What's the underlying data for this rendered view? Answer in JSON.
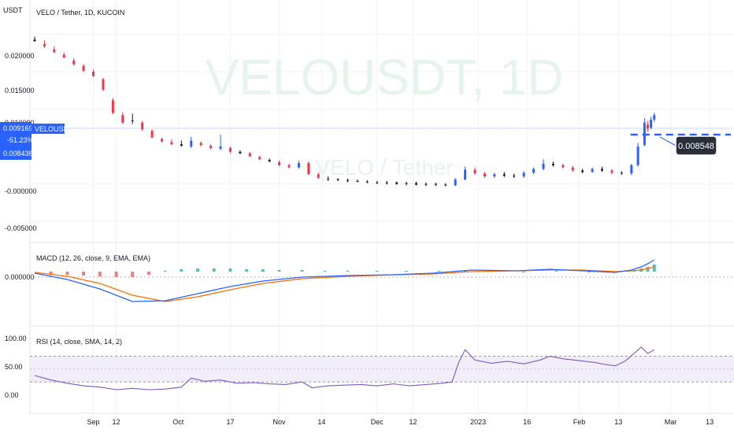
{
  "header": {
    "unit": "USDT",
    "title": "VELO / Tether, 1D, KUCOIN",
    "watermark_symbol": "VELOUSDT, 1D",
    "watermark_name": "VELO / Tether"
  },
  "price_axis": {
    "ticks": [
      "0.020000",
      "0.015000",
      "0.010000",
      "-0.000000",
      "-0.005000"
    ],
    "current_price_box": [
      "0.009169",
      "-51.23%",
      "0.008436"
    ],
    "symbol_badge": "VELOUSDT",
    "callout": "0.008548"
  },
  "macd": {
    "label": "MACD (12, 26, close, 9, EMA, EMA)",
    "tick": "0.000000"
  },
  "rsi": {
    "label": "RSI (14, close, SMA, 14, 2)",
    "ticks": [
      "100.00",
      "50.00",
      "0.00"
    ]
  },
  "time_axis": [
    "Sep",
    "12",
    "Oct",
    "17",
    "Nov",
    "14",
    "Dec",
    "12",
    "2023",
    "16",
    "Feb",
    "13",
    "Mar",
    "13"
  ],
  "colors": {
    "up": "#2962ff",
    "down": "#f23645",
    "doji": "#131722",
    "macd_line": "#2962ff",
    "signal_line": "#ff6d00",
    "hist_pos": "#26a69a",
    "hist_neg": "#ef5350",
    "rsi_line": "#7e57c2",
    "rsi_band": "#ede7f6"
  },
  "chart_data": {
    "type": "candlestick",
    "x_range": [
      "2022-08-18",
      "2023-03-19"
    ],
    "ylim": [
      -0.0072,
      0.0227
    ],
    "price": [
      {
        "date": "2022-08-18",
        "o": 0.0193,
        "h": 0.0197,
        "l": 0.019,
        "c": 0.0191
      },
      {
        "date": "2022-08-21",
        "o": 0.0187,
        "h": 0.0192,
        "l": 0.0182,
        "c": 0.0184
      },
      {
        "date": "2022-08-24",
        "o": 0.018,
        "h": 0.0184,
        "l": 0.0175,
        "c": 0.0176
      },
      {
        "date": "2022-08-27",
        "o": 0.0173,
        "h": 0.0176,
        "l": 0.0168,
        "c": 0.0169
      },
      {
        "date": "2022-08-30",
        "o": 0.0165,
        "h": 0.0168,
        "l": 0.0158,
        "c": 0.016
      },
      {
        "date": "2022-09-02",
        "o": 0.0158,
        "h": 0.016,
        "l": 0.015,
        "c": 0.0151
      },
      {
        "date": "2022-09-05",
        "o": 0.015,
        "h": 0.0153,
        "l": 0.0143,
        "c": 0.0144
      },
      {
        "date": "2022-09-08",
        "o": 0.014,
        "h": 0.0142,
        "l": 0.0124,
        "c": 0.0126
      },
      {
        "date": "2022-09-11",
        "o": 0.0112,
        "h": 0.0115,
        "l": 0.0093,
        "c": 0.0095
      },
      {
        "date": "2022-09-14",
        "o": 0.0092,
        "h": 0.0096,
        "l": 0.008,
        "c": 0.0082
      },
      {
        "date": "2022-09-17",
        "o": 0.0084,
        "h": 0.0094,
        "l": 0.008,
        "c": 0.0085
      },
      {
        "date": "2022-09-20",
        "o": 0.0082,
        "h": 0.0084,
        "l": 0.0071,
        "c": 0.0073
      },
      {
        "date": "2022-09-23",
        "o": 0.0071,
        "h": 0.0073,
        "l": 0.0061,
        "c": 0.0062
      },
      {
        "date": "2022-09-26",
        "o": 0.006,
        "h": 0.0062,
        "l": 0.0055,
        "c": 0.0057
      },
      {
        "date": "2022-09-29",
        "o": 0.0056,
        "h": 0.006,
        "l": 0.0052,
        "c": 0.0053
      },
      {
        "date": "2022-10-02",
        "o": 0.0053,
        "h": 0.0058,
        "l": 0.005,
        "c": 0.0051
      },
      {
        "date": "2022-10-05",
        "o": 0.005,
        "h": 0.0063,
        "l": 0.0048,
        "c": 0.0058
      },
      {
        "date": "2022-10-08",
        "o": 0.0055,
        "h": 0.0057,
        "l": 0.005,
        "c": 0.0052
      },
      {
        "date": "2022-10-11",
        "o": 0.0051,
        "h": 0.0053,
        "l": 0.0046,
        "c": 0.0048
      },
      {
        "date": "2022-10-14",
        "o": 0.0047,
        "h": 0.0066,
        "l": 0.0045,
        "c": 0.005
      },
      {
        "date": "2022-10-17",
        "o": 0.0048,
        "h": 0.005,
        "l": 0.0041,
        "c": 0.0043
      },
      {
        "date": "2022-10-20",
        "o": 0.0043,
        "h": 0.0045,
        "l": 0.004,
        "c": 0.0041
      },
      {
        "date": "2022-10-23",
        "o": 0.0041,
        "h": 0.0043,
        "l": 0.0036,
        "c": 0.0037
      },
      {
        "date": "2022-10-26",
        "o": 0.0036,
        "h": 0.0038,
        "l": 0.0032,
        "c": 0.0033
      },
      {
        "date": "2022-10-29",
        "o": 0.0032,
        "h": 0.0034,
        "l": 0.0029,
        "c": 0.003
      },
      {
        "date": "2022-11-01",
        "o": 0.0029,
        "h": 0.0031,
        "l": 0.0024,
        "c": 0.0025
      },
      {
        "date": "2022-11-04",
        "o": 0.0025,
        "h": 0.0027,
        "l": 0.0021,
        "c": 0.0022
      },
      {
        "date": "2022-11-07",
        "o": 0.0022,
        "h": 0.0031,
        "l": 0.002,
        "c": 0.0028
      },
      {
        "date": "2022-11-10",
        "o": 0.0028,
        "h": 0.003,
        "l": 0.0012,
        "c": 0.0013
      },
      {
        "date": "2022-11-13",
        "o": 0.0013,
        "h": 0.0015,
        "l": 0.0007,
        "c": 0.0008
      },
      {
        "date": "2022-11-16",
        "o": 0.0007,
        "h": 0.001,
        "l": 0.0004,
        "c": 0.0006
      },
      {
        "date": "2022-11-19",
        "o": 0.0006,
        "h": 0.0008,
        "l": 0.0004,
        "c": 0.0005
      },
      {
        "date": "2022-11-22",
        "o": 0.0005,
        "h": 0.0007,
        "l": 0.0002,
        "c": 0.0004
      },
      {
        "date": "2022-11-25",
        "o": 0.0004,
        "h": 0.0006,
        "l": 0.0002,
        "c": 0.0003
      },
      {
        "date": "2022-11-28",
        "o": 0.0003,
        "h": 0.0005,
        "l": 0.0001,
        "c": 0.0002
      },
      {
        "date": "2022-12-01",
        "o": 0.0002,
        "h": 0.0004,
        "l": 0.0,
        "c": 0.0001
      },
      {
        "date": "2022-12-04",
        "o": 0.0001,
        "h": 0.0004,
        "l": -0.0001,
        "c": 0.0002
      },
      {
        "date": "2022-12-07",
        "o": 0.0002,
        "h": 0.0003,
        "l": -0.0001,
        "c": 0.0
      },
      {
        "date": "2022-12-10",
        "o": 0.0,
        "h": 0.0003,
        "l": -0.0002,
        "c": 0.0001
      },
      {
        "date": "2022-12-13",
        "o": 0.0001,
        "h": 0.0003,
        "l": -0.0002,
        "c": -0.0001
      },
      {
        "date": "2022-12-16",
        "o": -0.0001,
        "h": 0.0002,
        "l": -0.0003,
        "c": 0.0
      },
      {
        "date": "2022-12-19",
        "o": 0.0,
        "h": 0.0002,
        "l": -0.0003,
        "c": -0.0001
      },
      {
        "date": "2022-12-22",
        "o": -0.0001,
        "h": 0.0001,
        "l": -0.0003,
        "c": -0.0002
      },
      {
        "date": "2022-12-25",
        "o": -0.0002,
        "h": 0.0008,
        "l": -0.0003,
        "c": 0.0006
      },
      {
        "date": "2022-12-28",
        "o": 0.0006,
        "h": 0.0023,
        "l": 0.0005,
        "c": 0.0019
      },
      {
        "date": "2022-12-31",
        "o": 0.0019,
        "h": 0.0022,
        "l": 0.0012,
        "c": 0.0014
      },
      {
        "date": "2023-01-03",
        "o": 0.0014,
        "h": 0.0016,
        "l": 0.0008,
        "c": 0.001
      },
      {
        "date": "2023-01-06",
        "o": 0.001,
        "h": 0.0015,
        "l": 0.0008,
        "c": 0.0013
      },
      {
        "date": "2023-01-09",
        "o": 0.0013,
        "h": 0.0016,
        "l": 0.0009,
        "c": 0.0011
      },
      {
        "date": "2023-01-12",
        "o": 0.0011,
        "h": 0.0014,
        "l": 0.0008,
        "c": 0.001
      },
      {
        "date": "2023-01-15",
        "o": 0.001,
        "h": 0.0017,
        "l": 0.0008,
        "c": 0.0015
      },
      {
        "date": "2023-01-18",
        "o": 0.0015,
        "h": 0.0022,
        "l": 0.0013,
        "c": 0.002
      },
      {
        "date": "2023-01-21",
        "o": 0.002,
        "h": 0.0033,
        "l": 0.0018,
        "c": 0.0027
      },
      {
        "date": "2023-01-24",
        "o": 0.0027,
        "h": 0.003,
        "l": 0.0023,
        "c": 0.0025
      },
      {
        "date": "2023-01-27",
        "o": 0.0025,
        "h": 0.0027,
        "l": 0.0021,
        "c": 0.0022
      },
      {
        "date": "2023-01-30",
        "o": 0.0022,
        "h": 0.0024,
        "l": 0.0016,
        "c": 0.0018
      },
      {
        "date": "2023-02-02",
        "o": 0.0018,
        "h": 0.002,
        "l": 0.0014,
        "c": 0.0016
      },
      {
        "date": "2023-02-05",
        "o": 0.0016,
        "h": 0.0022,
        "l": 0.0015,
        "c": 0.002
      },
      {
        "date": "2023-02-08",
        "o": 0.002,
        "h": 0.0023,
        "l": 0.0016,
        "c": 0.0018
      },
      {
        "date": "2023-02-11",
        "o": 0.0018,
        "h": 0.002,
        "l": 0.0013,
        "c": 0.0015
      },
      {
        "date": "2023-02-14",
        "o": 0.0015,
        "h": 0.0017,
        "l": 0.0012,
        "c": 0.0014
      },
      {
        "date": "2023-02-17",
        "o": 0.0014,
        "h": 0.0027,
        "l": 0.0012,
        "c": 0.0025
      },
      {
        "date": "2023-02-19",
        "o": 0.0025,
        "h": 0.0055,
        "l": 0.0023,
        "c": 0.005
      },
      {
        "date": "2023-02-21",
        "o": 0.0052,
        "h": 0.0088,
        "l": 0.005,
        "c": 0.0082
      },
      {
        "date": "2023-02-22",
        "o": 0.0079,
        "h": 0.0084,
        "l": 0.007,
        "c": 0.0074
      },
      {
        "date": "2023-02-23",
        "o": 0.0075,
        "h": 0.009,
        "l": 0.0073,
        "c": 0.0086
      },
      {
        "date": "2023-02-24",
        "o": 0.0086,
        "h": 0.0095,
        "l": 0.0083,
        "c": 0.0092
      }
    ],
    "macd_ylim": [
      -0.0055,
      0.0025
    ],
    "macd_line": [
      {
        "date": "2022-08-18",
        "v": -0.0002
      },
      {
        "date": "2022-08-28",
        "v": -0.001
      },
      {
        "date": "2022-09-07",
        "v": -0.0022
      },
      {
        "date": "2022-09-17",
        "v": -0.0038
      },
      {
        "date": "2022-09-27",
        "v": -0.0037
      },
      {
        "date": "2022-10-07",
        "v": -0.0028
      },
      {
        "date": "2022-10-17",
        "v": -0.0019
      },
      {
        "date": "2022-10-27",
        "v": -0.0012
      },
      {
        "date": "2022-11-08",
        "v": -0.0007
      },
      {
        "date": "2022-11-22",
        "v": -0.0005
      },
      {
        "date": "2022-12-06",
        "v": -0.0004
      },
      {
        "date": "2022-12-18",
        "v": -0.0002
      },
      {
        "date": "2022-12-30",
        "v": 0.0002
      },
      {
        "date": "2023-01-13",
        "v": 0.0001
      },
      {
        "date": "2023-01-23",
        "v": 0.0003
      },
      {
        "date": "2023-02-02",
        "v": 0.0001
      },
      {
        "date": "2023-02-12",
        "v": -0.0001
      },
      {
        "date": "2023-02-17",
        "v": 0.0002
      },
      {
        "date": "2023-02-20",
        "v": 0.0006
      },
      {
        "date": "2023-02-22",
        "v": 0.001
      },
      {
        "date": "2023-02-24",
        "v": 0.0015
      }
    ],
    "signal_line": [
      {
        "date": "2022-08-18",
        "v": -0.0001
      },
      {
        "date": "2022-08-28",
        "v": -0.0006
      },
      {
        "date": "2022-09-07",
        "v": -0.0015
      },
      {
        "date": "2022-09-17",
        "v": -0.003
      },
      {
        "date": "2022-09-27",
        "v": -0.0038
      },
      {
        "date": "2022-10-07",
        "v": -0.0032
      },
      {
        "date": "2022-10-17",
        "v": -0.0023
      },
      {
        "date": "2022-10-27",
        "v": -0.0015
      },
      {
        "date": "2022-11-08",
        "v": -0.0009
      },
      {
        "date": "2022-11-22",
        "v": -0.0006
      },
      {
        "date": "2022-12-06",
        "v": -0.0004
      },
      {
        "date": "2022-12-18",
        "v": -0.0003
      },
      {
        "date": "2022-12-30",
        "v": 0.0
      },
      {
        "date": "2023-01-13",
        "v": 0.0001
      },
      {
        "date": "2023-01-23",
        "v": 0.0002
      },
      {
        "date": "2023-02-02",
        "v": 0.0002
      },
      {
        "date": "2023-02-12",
        "v": 0.0
      },
      {
        "date": "2023-02-17",
        "v": 0.0001
      },
      {
        "date": "2023-02-20",
        "v": 0.0002
      },
      {
        "date": "2023-02-22",
        "v": 0.0004
      },
      {
        "date": "2023-02-24",
        "v": 0.0006
      }
    ],
    "histogram": [
      {
        "date": "2022-08-23",
        "v": -0.0003
      },
      {
        "date": "2022-08-28",
        "v": -0.0004
      },
      {
        "date": "2022-09-02",
        "v": -0.0005
      },
      {
        "date": "2022-09-07",
        "v": -0.0006
      },
      {
        "date": "2022-09-12",
        "v": -0.0007
      },
      {
        "date": "2022-09-17",
        "v": -0.0007
      },
      {
        "date": "2022-09-22",
        "v": -0.0004
      },
      {
        "date": "2022-09-27",
        "v": 0.0001
      },
      {
        "date": "2022-10-02",
        "v": 0.0003
      },
      {
        "date": "2022-10-07",
        "v": 0.0004
      },
      {
        "date": "2022-10-12",
        "v": 0.0004
      },
      {
        "date": "2022-10-17",
        "v": 0.0004
      },
      {
        "date": "2022-10-22",
        "v": 0.0003
      },
      {
        "date": "2022-10-27",
        "v": 0.0003
      },
      {
        "date": "2022-11-01",
        "v": 0.0002
      },
      {
        "date": "2022-11-08",
        "v": 0.0002
      },
      {
        "date": "2022-11-15",
        "v": 0.0001
      },
      {
        "date": "2022-11-22",
        "v": 0.0001
      },
      {
        "date": "2022-12-01",
        "v": 0.0001
      },
      {
        "date": "2022-12-10",
        "v": 0.0001
      },
      {
        "date": "2022-12-20",
        "v": 0.0001
      },
      {
        "date": "2022-12-28",
        "v": 0.0002
      },
      {
        "date": "2023-01-05",
        "v": 0.0001
      },
      {
        "date": "2023-01-15",
        "v": 0.0
      },
      {
        "date": "2023-01-25",
        "v": 0.0001
      },
      {
        "date": "2023-02-04",
        "v": -0.0001
      },
      {
        "date": "2023-02-12",
        "v": -0.0001
      },
      {
        "date": "2023-02-16",
        "v": 0.0001
      },
      {
        "date": "2023-02-18",
        "v": 0.0002
      },
      {
        "date": "2023-02-20",
        "v": 0.0004
      },
      {
        "date": "2023-02-22",
        "v": 0.0006
      },
      {
        "date": "2023-02-24",
        "v": 0.0009
      }
    ],
    "rsi_ylim": [
      -15,
      112
    ],
    "rsi_upper": 70,
    "rsi_lower": 30,
    "rsi_mid": 50,
    "rsi": [
      {
        "date": "2022-08-18",
        "v": 40
      },
      {
        "date": "2022-08-23",
        "v": 33
      },
      {
        "date": "2022-08-28",
        "v": 28
      },
      {
        "date": "2022-09-02",
        "v": 24
      },
      {
        "date": "2022-09-07",
        "v": 22
      },
      {
        "date": "2022-09-12",
        "v": 18
      },
      {
        "date": "2022-09-17",
        "v": 20
      },
      {
        "date": "2022-09-22",
        "v": 18
      },
      {
        "date": "2022-09-27",
        "v": 19
      },
      {
        "date": "2022-10-02",
        "v": 22
      },
      {
        "date": "2022-10-05",
        "v": 36
      },
      {
        "date": "2022-10-09",
        "v": 31
      },
      {
        "date": "2022-10-14",
        "v": 33
      },
      {
        "date": "2022-10-19",
        "v": 28
      },
      {
        "date": "2022-10-24",
        "v": 29
      },
      {
        "date": "2022-10-29",
        "v": 27
      },
      {
        "date": "2022-11-03",
        "v": 26
      },
      {
        "date": "2022-11-08",
        "v": 30
      },
      {
        "date": "2022-11-11",
        "v": 21
      },
      {
        "date": "2022-11-16",
        "v": 24
      },
      {
        "date": "2022-11-21",
        "v": 25
      },
      {
        "date": "2022-11-26",
        "v": 26
      },
      {
        "date": "2022-12-01",
        "v": 24
      },
      {
        "date": "2022-12-06",
        "v": 27
      },
      {
        "date": "2022-12-11",
        "v": 24
      },
      {
        "date": "2022-12-16",
        "v": 26
      },
      {
        "date": "2022-12-21",
        "v": 28
      },
      {
        "date": "2022-12-24",
        "v": 30
      },
      {
        "date": "2022-12-26",
        "v": 60
      },
      {
        "date": "2022-12-28",
        "v": 80
      },
      {
        "date": "2022-12-31",
        "v": 64
      },
      {
        "date": "2023-01-05",
        "v": 59
      },
      {
        "date": "2023-01-10",
        "v": 62
      },
      {
        "date": "2023-01-15",
        "v": 58
      },
      {
        "date": "2023-01-20",
        "v": 64
      },
      {
        "date": "2023-01-23",
        "v": 70
      },
      {
        "date": "2023-01-27",
        "v": 66
      },
      {
        "date": "2023-02-01",
        "v": 63
      },
      {
        "date": "2023-02-06",
        "v": 60
      },
      {
        "date": "2023-02-09",
        "v": 57
      },
      {
        "date": "2023-02-12",
        "v": 55
      },
      {
        "date": "2023-02-15",
        "v": 62
      },
      {
        "date": "2023-02-18",
        "v": 75
      },
      {
        "date": "2023-02-20",
        "v": 84
      },
      {
        "date": "2023-02-22",
        "v": 74
      },
      {
        "date": "2023-02-24",
        "v": 80
      }
    ]
  }
}
